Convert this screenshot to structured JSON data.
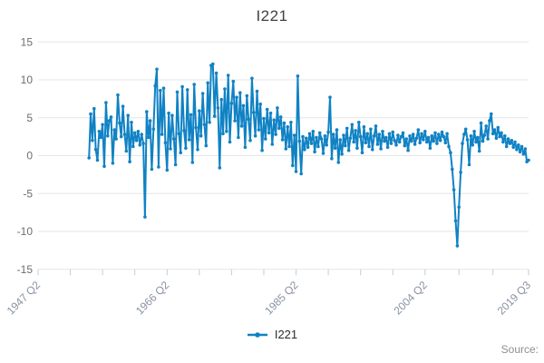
{
  "title": "I221",
  "legend": {
    "label": "I221"
  },
  "source_label": "Source:",
  "colors": {
    "line": "#1082c4",
    "grid": "#e6e6e6",
    "tick": "#c3cbdd",
    "xlabel": "#8892a0",
    "ylabel": "#6d6d6d",
    "title": "#414042",
    "legend_text": "#2b2b2b",
    "source": "#8f8f8f"
  },
  "chart_data": {
    "type": "line",
    "title": "I221",
    "xlabel": "",
    "ylabel": "",
    "ylim": [
      -15,
      15
    ],
    "yticks": [
      -15,
      -10,
      -5,
      0,
      5,
      10,
      15
    ],
    "grid": true,
    "legend_position": "bottom",
    "x_axis": {
      "domain_quarters": [
        0,
        289
      ],
      "labeled_ticks": [
        {
          "label": "1947 Q2",
          "quarter": 0
        },
        {
          "label": "1966 Q2",
          "quarter": 76
        },
        {
          "label": "1985 Q2",
          "quarter": 152
        },
        {
          "label": "2004 Q2",
          "quarter": 228
        },
        {
          "label": "2019 Q3",
          "quarter": 289
        }
      ],
      "minor_tick_quarters": [
        0,
        19,
        38,
        57,
        76,
        95,
        114,
        133,
        152,
        171,
        190,
        209,
        228,
        248,
        268,
        289
      ]
    },
    "series": [
      {
        "name": "I221",
        "frequency": "quarterly",
        "start": "1954 Q4",
        "start_quarter_offset": 30,
        "values": [
          -0.3,
          5.5,
          2.0,
          6.2,
          0.8,
          -0.6,
          3.2,
          2.4,
          4.1,
          -1.4,
          7.0,
          2.6,
          4.6,
          5.1,
          -1.0,
          3.4,
          2.2,
          8.0,
          4.3,
          2.5,
          6.5,
          2.8,
          0.6,
          5.3,
          -0.8,
          4.4,
          1.2,
          3.0,
          2.0,
          3.2,
          1.4,
          2.8,
          1.6,
          -8.1,
          5.8,
          2.4,
          4.6,
          -1.8,
          3.5,
          9.2,
          11.4,
          -1.5,
          8.6,
          2.8,
          8.9,
          1.7,
          -1.9,
          5.6,
          0.9,
          5.3,
          2.2,
          -1.2,
          8.4,
          2.9,
          0.4,
          9.1,
          3.3,
          1.0,
          8.7,
          2.1,
          5.4,
          -0.9,
          9.4,
          3.7,
          0.8,
          5.9,
          2.6,
          8.2,
          4.1,
          1.3,
          9.6,
          4.4,
          11.9,
          12.1,
          5.2,
          10.9,
          6.3,
          -1.6,
          7.4,
          2.9,
          8.8,
          3.2,
          10.6,
          1.8,
          6.9,
          9.8,
          4.6,
          7.7,
          2.4,
          8.3,
          3.9,
          6.6,
          1.1,
          7.9,
          4.8,
          2.0,
          10.2,
          5.7,
          2.6,
          8.5,
          3.4,
          6.8,
          0.7,
          4.9,
          2.2,
          6.1,
          3.0,
          5.6,
          1.5,
          4.7,
          2.8,
          6.3,
          3.6,
          5.1,
          2.1,
          4.3,
          0.9,
          3.8,
          1.2,
          4.4,
          -1.3,
          2.7,
          -2.1,
          10.5,
          1.9,
          -2.4,
          2.5,
          0.8,
          2.3,
          1.1,
          2.9,
          1.6,
          3.2,
          0.5,
          2.4,
          1.2,
          3.0,
          2.2,
          0.3,
          2.6,
          1.4,
          3.1,
          7.7,
          -0.4,
          2.8,
          1.0,
          3.4,
          -0.9,
          2.1,
          0.2,
          2.7,
          1.3,
          3.6,
          0.7,
          2.3,
          4.1,
          1.8,
          3.3,
          1.0,
          4.4,
          2.5,
          0.4,
          3.8,
          1.7,
          2.9,
          1.2,
          3.5,
          0.8,
          2.6,
          3.9,
          1.5,
          2.8,
          0.9,
          3.2,
          1.9,
          2.4,
          1.1,
          2.9,
          1.6,
          3.1,
          2.0,
          1.4,
          2.7,
          1.8,
          2.5,
          3.0,
          1.3,
          2.2,
          0.7,
          2.6,
          1.9,
          2.8,
          1.5,
          2.3,
          3.4,
          1.7,
          2.9,
          2.1,
          3.2,
          1.8,
          2.4,
          1.0,
          2.6,
          1.9,
          3.0,
          1.6,
          2.8,
          2.0,
          3.1,
          2.5,
          1.7,
          2.9,
          1.2,
          0.4,
          -1.8,
          -4.5,
          -8.6,
          -11.9,
          -6.8,
          -2.2,
          1.6,
          2.8,
          3.5,
          2.1,
          -1.2,
          2.6,
          1.4,
          3.2,
          1.8,
          2.4,
          0.6,
          4.3,
          1.9,
          2.7,
          3.9,
          2.2,
          4.6,
          5.5,
          2.9,
          3.4,
          2.3,
          3.7,
          2.5,
          3.0,
          1.8,
          2.6,
          1.2,
          2.2,
          1.6,
          2.0,
          1.1,
          1.8,
          0.8,
          1.4,
          0.5,
          1.2,
          0.2,
          0.9,
          -0.8,
          -0.6
        ]
      }
    ]
  }
}
